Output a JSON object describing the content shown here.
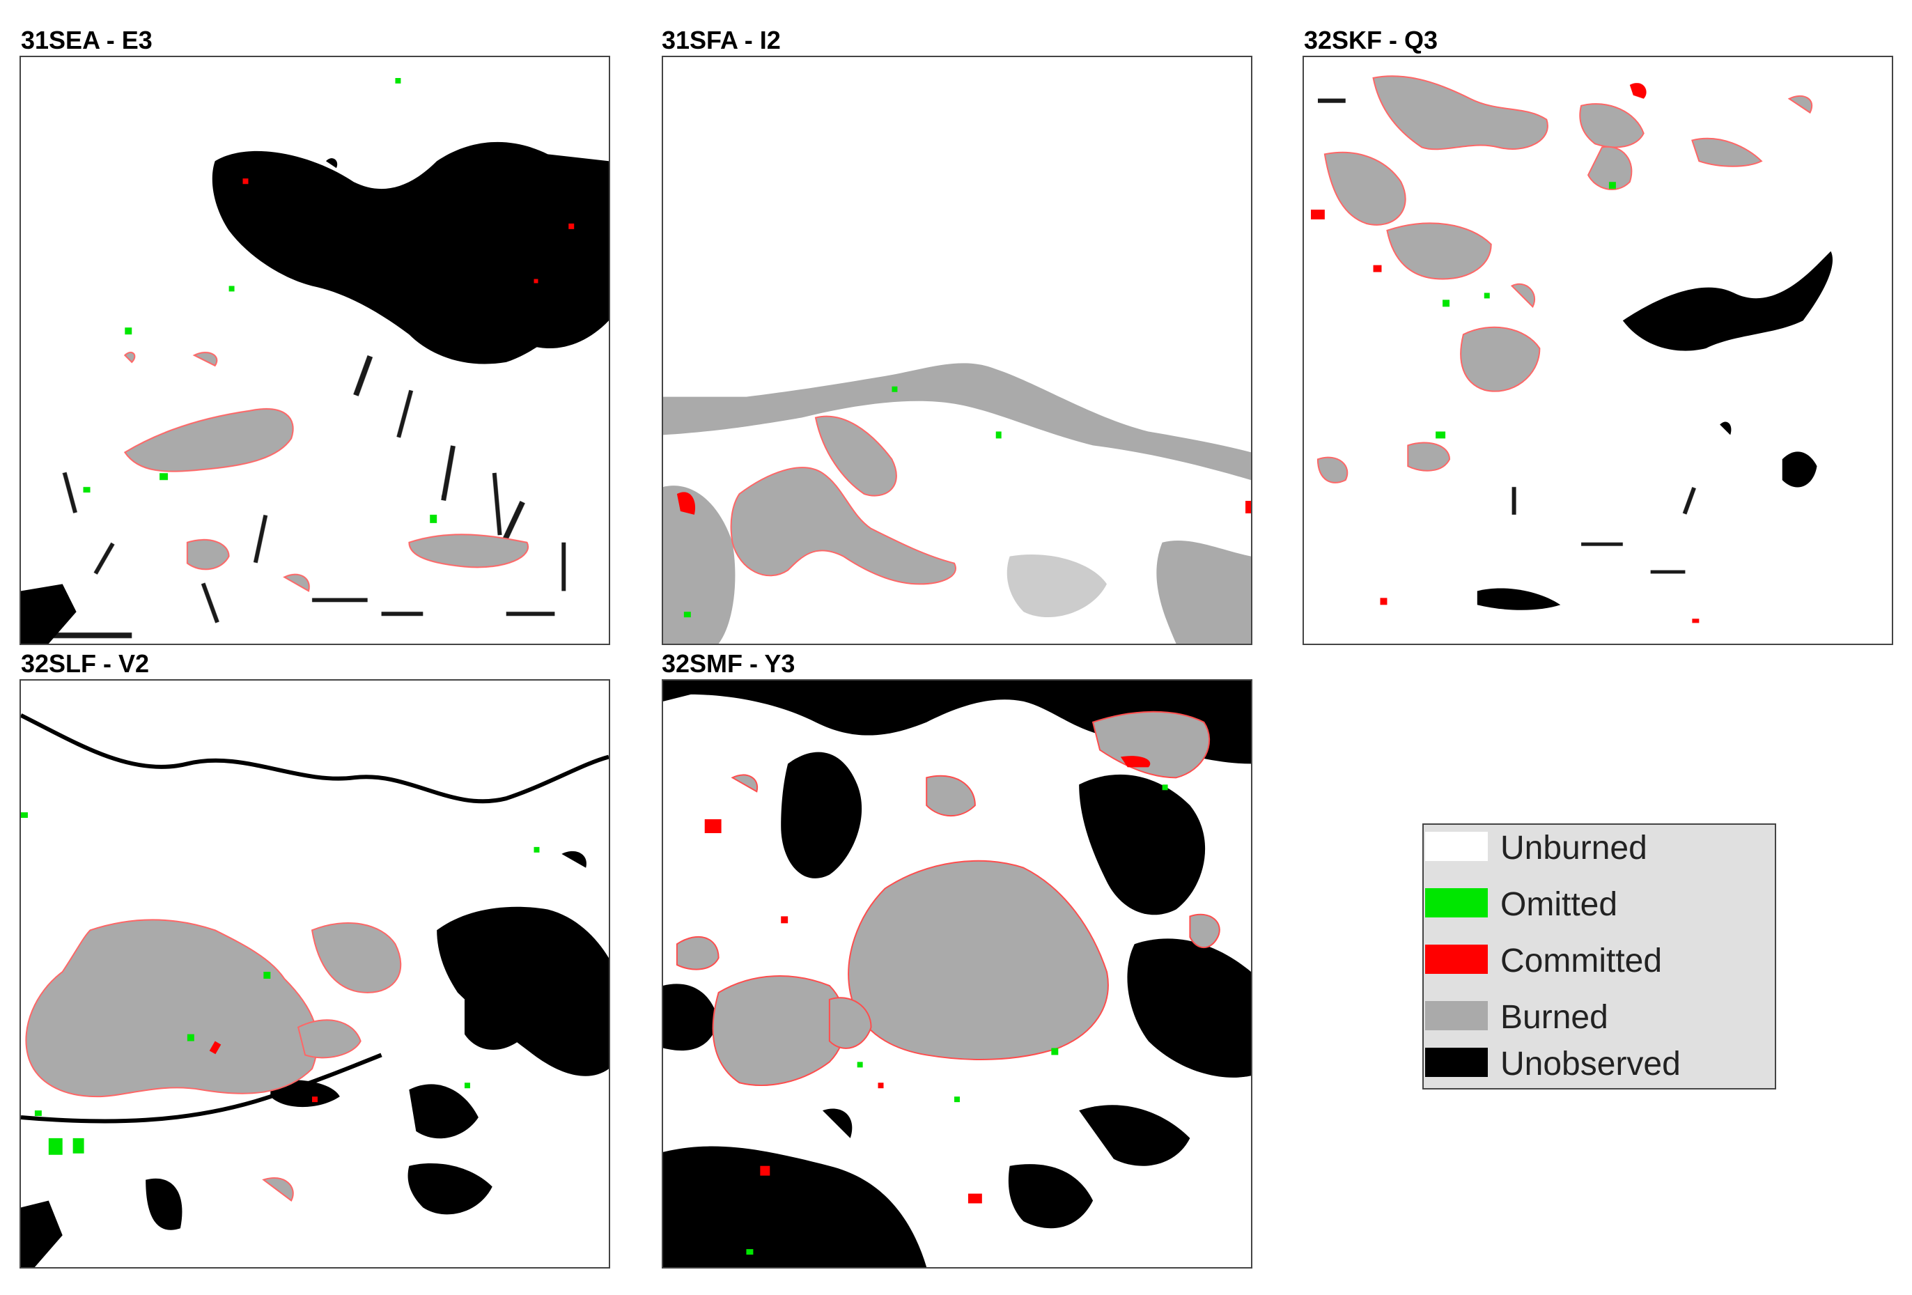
{
  "panels": [
    {
      "title": "31SEA - E3"
    },
    {
      "title": "31SFA - I2"
    },
    {
      "title": "32SKF - Q3"
    },
    {
      "title": "32SLF - V2"
    },
    {
      "title": "32SMF - Y3"
    }
  ],
  "legend": {
    "items": [
      {
        "label": "Unburned",
        "color": "#ffffff"
      },
      {
        "label": "Omitted",
        "color": "#00e600"
      },
      {
        "label": "Committed",
        "color": "#ff0000"
      },
      {
        "label": "Burned",
        "color": "#aaaaaa"
      },
      {
        "label": "Unobserved",
        "color": "#000000"
      }
    ]
  }
}
